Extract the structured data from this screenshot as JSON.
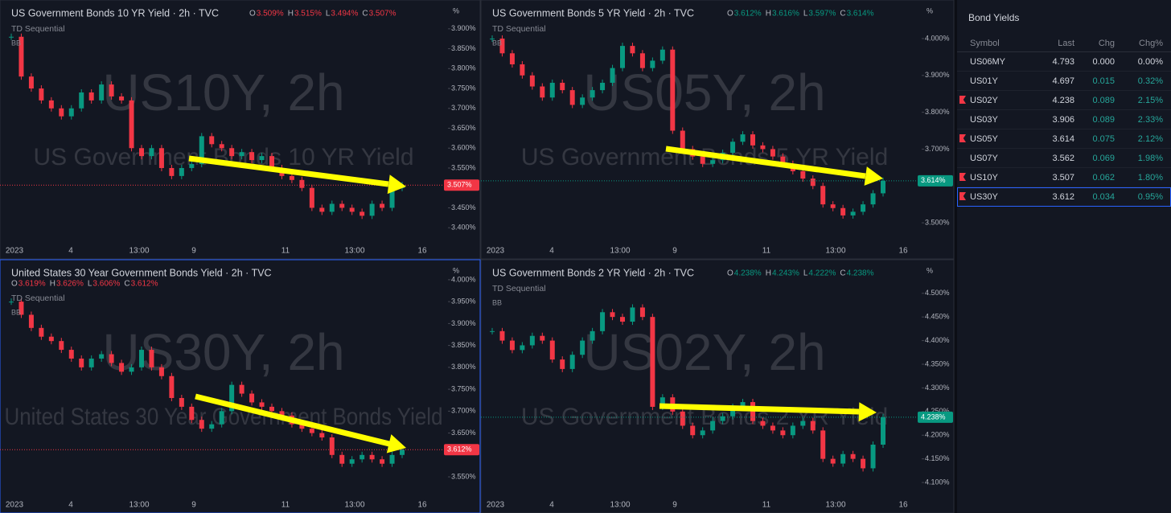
{
  "panels": [
    {
      "title": "US Government Bonds 10 YR Yield · 2h · TVC",
      "ohlc": [
        {
          "key": "O",
          "value": "3.509%"
        },
        {
          "key": "H",
          "value": "3.515%"
        },
        {
          "key": "L",
          "value": "3.494%"
        },
        {
          "key": "C",
          "value": "3.507%"
        }
      ],
      "indicators": [
        "TD Sequential",
        "BB"
      ],
      "watermark": "US10Y, 2h",
      "watermark_sub": "US Government Bonds 10 YR Yield",
      "unit": "%",
      "color": "#f23645",
      "ylim": [
        3.366,
        3.932
      ],
      "yticks": [
        {
          "value": 3.9,
          "label": "3.900%"
        },
        {
          "value": 3.85,
          "label": "3.850%"
        },
        {
          "value": 3.8,
          "label": "3.800%"
        },
        {
          "value": 3.75,
          "label": "3.750%"
        },
        {
          "value": 3.7,
          "label": "3.700%"
        },
        {
          "value": 3.65,
          "label": "3.650%"
        },
        {
          "value": 3.6,
          "label": "3.600%"
        },
        {
          "value": 3.55,
          "label": "3.550%"
        },
        {
          "value": 3.45,
          "label": "3.450%"
        },
        {
          "value": 3.4,
          "label": "3.400%"
        }
      ],
      "last": {
        "value": 3.507,
        "label": "3.507%"
      },
      "x_labels": [
        "2023",
        "4",
        "13:00",
        "9",
        "11",
        "13:00",
        "16"
      ],
      "closes": [
        3.88,
        3.78,
        3.75,
        3.72,
        3.7,
        3.68,
        3.7,
        3.74,
        3.72,
        3.76,
        3.73,
        3.72,
        3.6,
        3.58,
        3.6,
        3.55,
        3.53,
        3.55,
        3.56,
        3.63,
        3.61,
        3.6,
        3.58,
        3.59,
        3.57,
        3.58,
        3.55,
        3.53,
        3.52,
        3.5,
        3.45,
        3.44,
        3.46,
        3.45,
        3.44,
        3.43,
        3.46,
        3.45,
        3.5,
        3.507
      ]
    },
    {
      "title": "US Government Bonds 5 YR Yield · 2h · TVC",
      "ohlc": [
        {
          "key": "O",
          "value": "3.612%"
        },
        {
          "key": "H",
          "value": "3.616%"
        },
        {
          "key": "L",
          "value": "3.597%"
        },
        {
          "key": "C",
          "value": "3.614%"
        }
      ],
      "indicators": [
        "TD Sequential",
        "BB"
      ],
      "watermark": "US05Y, 2h",
      "watermark_sub": "US Government Bonds 5 YR Yield",
      "unit": "%",
      "color": "#089981",
      "ylim": [
        3.45,
        4.061
      ],
      "yticks": [
        {
          "value": 4.0,
          "label": "4.000%"
        },
        {
          "value": 3.9,
          "label": "3.900%"
        },
        {
          "value": 3.8,
          "label": "3.800%"
        },
        {
          "value": 3.7,
          "label": "3.700%"
        },
        {
          "value": 3.5,
          "label": "3.500%"
        }
      ],
      "last": {
        "value": 3.614,
        "label": "3.614%"
      },
      "x_labels": [
        "2023",
        "4",
        "13:00",
        "9",
        "11",
        "13:00",
        "16"
      ],
      "closes": [
        4.0,
        3.96,
        3.93,
        3.9,
        3.87,
        3.84,
        3.88,
        3.86,
        3.82,
        3.84,
        3.86,
        3.88,
        3.92,
        3.98,
        3.96,
        3.92,
        3.94,
        3.97,
        3.75,
        3.7,
        3.68,
        3.66,
        3.67,
        3.69,
        3.72,
        3.74,
        3.71,
        3.7,
        3.68,
        3.66,
        3.64,
        3.62,
        3.6,
        3.55,
        3.54,
        3.52,
        3.53,
        3.55,
        3.58,
        3.614
      ]
    },
    {
      "title": "United States 30 Year Government Bonds Yield · 2h · TVC",
      "ohlc": [
        {
          "key": "O",
          "value": "3.619%"
        },
        {
          "key": "H",
          "value": "3.626%"
        },
        {
          "key": "L",
          "value": "3.606%"
        },
        {
          "key": "C",
          "value": "3.612%"
        }
      ],
      "indicators": [
        "TD Sequential",
        "BB"
      ],
      "watermark": "US30Y, 2h",
      "watermark_sub": "United States 30 Year Government Bonds Yield",
      "unit": "%",
      "color": "#f23645",
      "ylim": [
        3.495,
        4.009
      ],
      "yticks": [
        {
          "value": 4.0,
          "label": "4.000%"
        },
        {
          "value": 3.95,
          "label": "3.950%"
        },
        {
          "value": 3.9,
          "label": "3.900%"
        },
        {
          "value": 3.85,
          "label": "3.850%"
        },
        {
          "value": 3.8,
          "label": "3.800%"
        },
        {
          "value": 3.75,
          "label": "3.750%"
        },
        {
          "value": 3.7,
          "label": "3.700%"
        },
        {
          "value": 3.65,
          "label": "3.650%"
        },
        {
          "value": 3.55,
          "label": "3.550%"
        }
      ],
      "last": {
        "value": 3.612,
        "label": "3.612%"
      },
      "x_labels": [
        "2023",
        "4",
        "13:00",
        "9",
        "11",
        "13:00",
        "16"
      ],
      "closes": [
        3.95,
        3.92,
        3.89,
        3.87,
        3.86,
        3.84,
        3.82,
        3.8,
        3.82,
        3.83,
        3.81,
        3.79,
        3.8,
        3.84,
        3.8,
        3.78,
        3.73,
        3.71,
        3.68,
        3.66,
        3.67,
        3.7,
        3.76,
        3.74,
        3.72,
        3.71,
        3.7,
        3.69,
        3.67,
        3.66,
        3.65,
        3.64,
        3.6,
        3.58,
        3.59,
        3.6,
        3.59,
        3.58,
        3.6,
        3.612
      ]
    },
    {
      "title": "US Government Bonds 2 YR Yield · 2h · TVC",
      "ohlc": [
        {
          "key": "O",
          "value": "4.238%"
        },
        {
          "key": "H",
          "value": "4.243%"
        },
        {
          "key": "L",
          "value": "4.222%"
        },
        {
          "key": "C",
          "value": "4.238%"
        }
      ],
      "indicators": [
        "TD Sequential",
        "BB"
      ],
      "watermark": "US02Y, 2h",
      "watermark_sub": "US Government Bonds 2 YR Yield",
      "unit": "%",
      "color": "#089981",
      "ylim": [
        4.061,
        4.537
      ],
      "yticks": [
        {
          "value": 4.5,
          "label": "4.500%"
        },
        {
          "value": 4.45,
          "label": "4.450%"
        },
        {
          "value": 4.4,
          "label": "4.400%"
        },
        {
          "value": 4.35,
          "label": "4.350%"
        },
        {
          "value": 4.3,
          "label": "4.300%"
        },
        {
          "value": 4.25,
          "label": "4.250%"
        },
        {
          "value": 4.2,
          "label": "4.200%"
        },
        {
          "value": 4.15,
          "label": "4.150%"
        },
        {
          "value": 4.1,
          "label": "4.100%"
        }
      ],
      "last": {
        "value": 4.238,
        "label": "4.238%"
      },
      "x_labels": [
        "2023",
        "4",
        "13:00",
        "9",
        "11",
        "13:00",
        "16"
      ],
      "closes": [
        4.42,
        4.4,
        4.38,
        4.39,
        4.41,
        4.4,
        4.36,
        4.34,
        4.37,
        4.4,
        4.42,
        4.46,
        4.45,
        4.44,
        4.47,
        4.45,
        4.26,
        4.28,
        4.25,
        4.22,
        4.2,
        4.21,
        4.23,
        4.24,
        4.26,
        4.27,
        4.23,
        4.22,
        4.21,
        4.2,
        4.22,
        4.23,
        4.21,
        4.15,
        4.14,
        4.16,
        4.15,
        4.13,
        4.18,
        4.238
      ]
    }
  ],
  "watchlist": {
    "title": "Bond Yields",
    "columns": [
      "Symbol",
      "Last",
      "Chg",
      "Chg%"
    ],
    "rows": [
      {
        "symbol": "US06MY",
        "last": "4.793",
        "chg": "0.000",
        "chg_pct": "0.00%"
      },
      {
        "symbol": "US01Y",
        "last": "4.697",
        "chg": "0.015",
        "chg_pct": "0.32%"
      },
      {
        "symbol": "US02Y",
        "last": "4.238",
        "chg": "0.089",
        "chg_pct": "2.15%"
      },
      {
        "symbol": "US03Y",
        "last": "3.906",
        "chg": "0.089",
        "chg_pct": "2.33%"
      },
      {
        "symbol": "US05Y",
        "last": "3.614",
        "chg": "0.075",
        "chg_pct": "2.12%"
      },
      {
        "symbol": "US07Y",
        "last": "3.562",
        "chg": "0.069",
        "chg_pct": "1.98%"
      },
      {
        "symbol": "US10Y",
        "last": "3.507",
        "chg": "0.062",
        "chg_pct": "1.80%"
      },
      {
        "symbol": "US30Y",
        "last": "3.612",
        "chg": "0.034",
        "chg_pct": "0.95%"
      }
    ]
  }
}
